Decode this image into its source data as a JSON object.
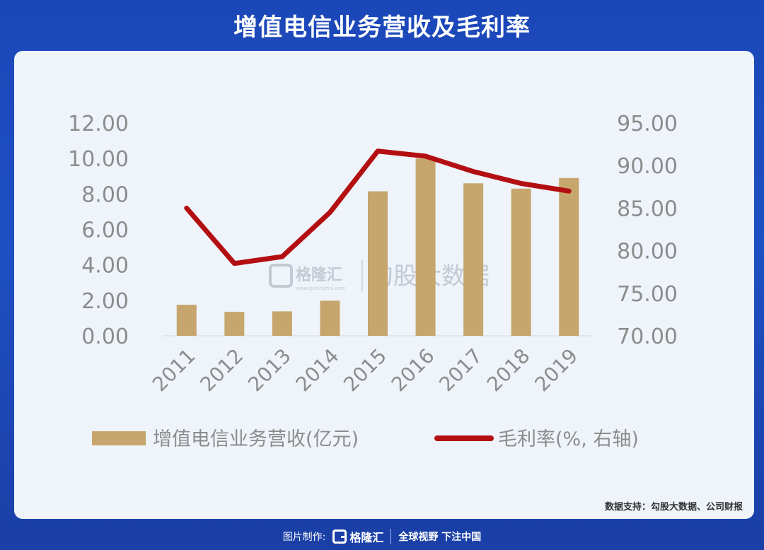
{
  "title": "增值电信业务营收及毛利率",
  "source": "数据支持：勾股大数据、公司财报",
  "footer": {
    "credit_label": "图片制作:",
    "brand": "格隆汇",
    "slogan": "全球视野 下注中国"
  },
  "watermark": {
    "brand": "格隆汇",
    "brand_sub": "www.gelonghui.com",
    "partner": "勾股大数据"
  },
  "colors": {
    "bar": "#c6a66c",
    "line": "#b30f12",
    "axis_text": "#8c8c8c"
  },
  "chart_data": {
    "type": "bar",
    "title": "",
    "categories": [
      "2011",
      "2012",
      "2013",
      "2014",
      "2015",
      "2016",
      "2017",
      "2018",
      "2019"
    ],
    "series": [
      {
        "name": "增值电信业务营收(亿元)",
        "type": "bar",
        "axis": "left",
        "values": [
          1.75,
          1.35,
          1.38,
          1.98,
          8.15,
          10.0,
          8.6,
          8.3,
          8.9
        ]
      },
      {
        "name": "毛利率(%, 右轴)",
        "type": "line",
        "axis": "right",
        "values": [
          85.0,
          78.5,
          79.3,
          84.5,
          91.7,
          91.1,
          89.3,
          87.9,
          87.0
        ]
      }
    ],
    "y_left": {
      "min": 0,
      "max": 12,
      "ticks": [
        "0.00",
        "2.00",
        "4.00",
        "6.00",
        "8.00",
        "10.00",
        "12.00"
      ]
    },
    "y_right": {
      "min": 70,
      "max": 95,
      "ticks": [
        "70.00",
        "75.00",
        "80.00",
        "85.00",
        "90.00",
        "95.00"
      ]
    },
    "grid": false,
    "legend_position": "bottom"
  }
}
